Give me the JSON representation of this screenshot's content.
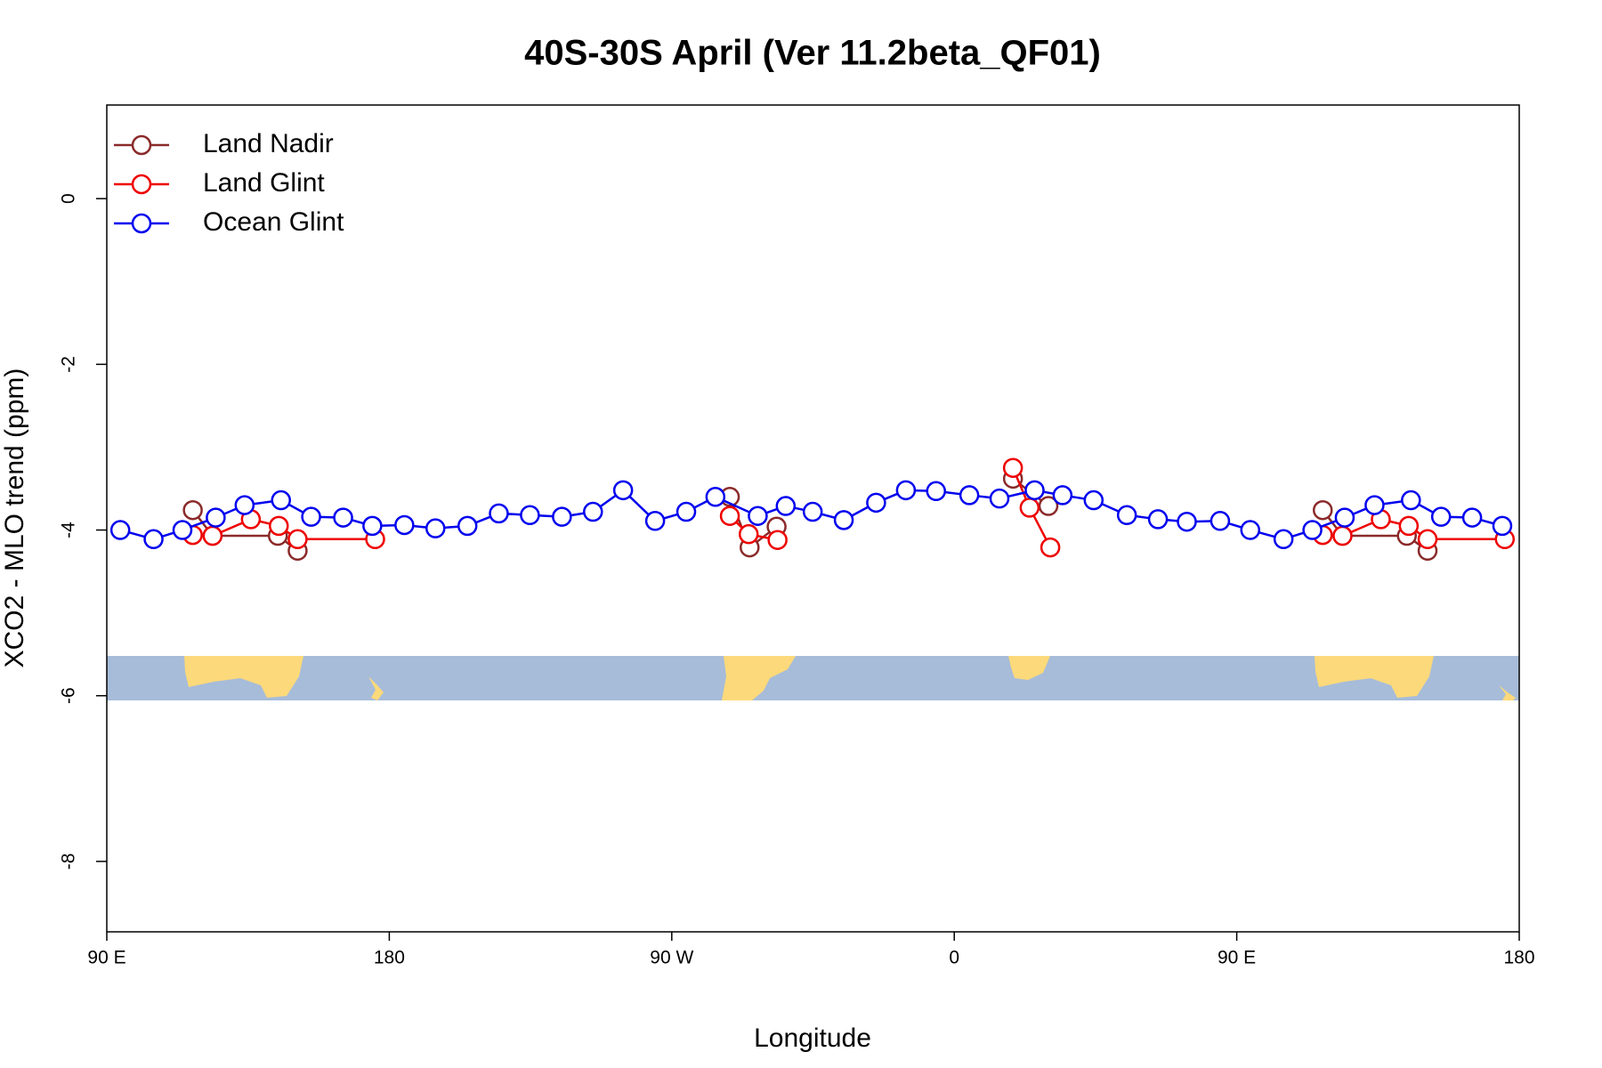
{
  "chart_data": {
    "type": "line",
    "title": "40S-30S April (Ver 11.2beta_QF01)",
    "x_label": "Longitude",
    "y_label": "XCO2 - MLO trend (ppm)",
    "xlim": [
      90,
      540
    ],
    "ylim": [
      -8.85,
      1.13
    ],
    "xticks": [
      {
        "value": 90,
        "label": "90 E"
      },
      {
        "value": 180,
        "label": "180"
      },
      {
        "value": 270,
        "label": "90 W"
      },
      {
        "value": 360,
        "label": "0"
      },
      {
        "value": 450,
        "label": "90 E"
      },
      {
        "value": 540,
        "label": "180"
      }
    ],
    "yticks": [
      0,
      -2,
      -4,
      -6,
      -8
    ],
    "legend": "top-left",
    "series": [
      {
        "name": "Land Nadir",
        "color": "#8b2a2a",
        "x": [
          117.4,
          123.7,
          144.5,
          150.8,
          null,
          288.5,
          294.8,
          303.4,
          null,
          378.7,
          390.0,
          null,
          477.4,
          483.7,
          504.2,
          510.8
        ],
        "values": [
          -3.76,
          -4.07,
          -4.07,
          -4.25,
          null,
          -3.6,
          -4.21,
          -3.96,
          null,
          -3.38,
          -3.71,
          null,
          -3.76,
          -4.07,
          -4.07,
          -4.25
        ]
      },
      {
        "name": "Land Glint",
        "color": "#ee0000",
        "x": [
          117.4,
          123.7,
          135.9,
          144.8,
          150.8,
          175.5,
          null,
          288.5,
          294.5,
          303.7,
          null,
          378.7,
          384.0,
          390.6,
          null,
          477.4,
          483.7,
          495.9,
          504.8,
          510.8,
          535.4
        ],
        "values": [
          -4.06,
          -4.07,
          -3.87,
          -3.95,
          -4.11,
          -4.11,
          null,
          -3.83,
          -4.05,
          -4.12,
          null,
          -3.25,
          -3.73,
          -4.21,
          null,
          -4.06,
          -4.07,
          -3.87,
          -3.95,
          -4.11,
          -4.11
        ]
      },
      {
        "name": "Ocean Glint",
        "color": "#0000ee",
        "x": [
          94.3,
          104.9,
          114.1,
          124.7,
          133.9,
          145.5,
          155.1,
          165.3,
          174.6,
          184.8,
          194.7,
          204.9,
          214.9,
          224.8,
          235.0,
          244.9,
          254.5,
          264.7,
          274.6,
          283.9,
          297.4,
          306.3,
          314.9,
          324.8,
          335.1,
          344.6,
          354.2,
          364.8,
          374.4,
          385.6,
          394.5,
          404.4,
          415.0,
          424.9,
          434.1,
          444.7,
          454.3,
          464.9,
          474.1,
          484.4,
          493.9,
          505.5,
          515.1,
          525.0,
          534.6
        ],
        "values": [
          -4.0,
          -4.11,
          -4.0,
          -3.85,
          -3.7,
          -3.64,
          -3.84,
          -3.85,
          -3.95,
          -3.94,
          -3.98,
          -3.95,
          -3.8,
          -3.82,
          -3.84,
          -3.78,
          -3.52,
          -3.89,
          -3.78,
          -3.6,
          -3.83,
          -3.71,
          -3.78,
          -3.88,
          -3.67,
          -3.52,
          -3.53,
          -3.58,
          -3.62,
          -3.52,
          -3.58,
          -3.64,
          -3.82,
          -3.87,
          -3.9,
          -3.89,
          -4.0,
          -4.11,
          -4.0,
          -3.85,
          -3.7,
          -3.64,
          -3.84,
          -3.85,
          -3.95
        ]
      }
    ]
  }
}
